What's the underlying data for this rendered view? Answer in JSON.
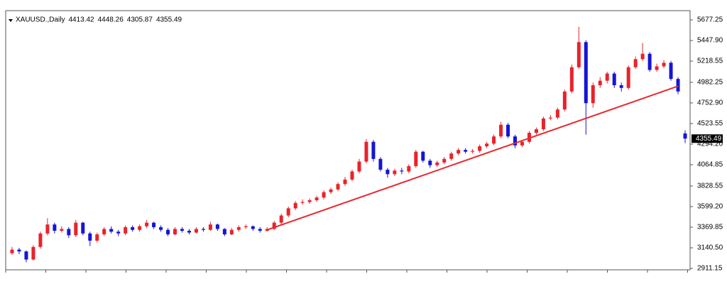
{
  "chart_data": {
    "type": "candlestick",
    "header": {
      "symbol": "XAUUSD.,Daily",
      "open": 4413.42,
      "high": 4448.26,
      "low": 4305.87,
      "close": 4355.49
    },
    "up_color": "#e8232a",
    "down_color": "#1515d6",
    "last_price": 4355.49,
    "ylim": [
      2911.15,
      5677.25
    ],
    "yticks": [
      5677.25,
      {
        "value": 5447.9,
        "label": "5447.90"
      },
      5218.55,
      4982.25,
      {
        "value": 4752.9,
        "label": "4752.90"
      },
      4523.55,
      {
        "value": 4294.2,
        "label": "4294.20"
      },
      4064.85,
      3828.55,
      {
        "value": 3599.2,
        "label": "3599.20"
      },
      3369.85,
      {
        "value": 3140.5,
        "label": "3140.50"
      },
      2911.15
    ],
    "trendline": {
      "color": "#e8292e",
      "from": [
        36,
        3340
      ],
      "to": [
        94,
        4940
      ]
    },
    "open": [
      3080,
      3120,
      3100,
      3010,
      3150,
      3300,
      3400,
      3330,
      3350,
      3280,
      3420,
      3300,
      3220,
      3290,
      3350,
      3320,
      3300,
      3370,
      3340,
      3380,
      3420,
      3370,
      3340,
      3290,
      3350,
      3330,
      3310,
      3350,
      3340,
      3400,
      3350,
      3290,
      3340,
      3370,
      3380,
      3350,
      3330,
      3350,
      3420,
      3500,
      3580,
      3640,
      3650,
      3670,
      3700,
      3760,
      3790,
      3850,
      3900,
      3990,
      4100,
      4320,
      4130,
      4010,
      3960,
      4000,
      3990,
      4050,
      4210,
      4110,
      4060,
      4090,
      4130,
      4190,
      4230,
      4210,
      4220,
      4270,
      4300,
      4380,
      4510,
      4380,
      4280,
      4320,
      4420,
      4460,
      4580,
      4590,
      4680,
      4880,
      5150,
      5430,
      4750,
      4950,
      5000,
      5080,
      4950,
      4920,
      5150,
      5240,
      5300,
      5120,
      5160,
      5200,
      5020,
      4413.42
    ],
    "high": [
      3150,
      3140,
      3110,
      3170,
      3320,
      3470,
      3420,
      3380,
      3370,
      3450,
      3430,
      3320,
      3310,
      3370,
      3380,
      3340,
      3390,
      3390,
      3400,
      3450,
      3430,
      3390,
      3360,
      3370,
      3370,
      3350,
      3370,
      3370,
      3430,
      3410,
      3360,
      3360,
      3390,
      3400,
      3390,
      3370,
      3370,
      3440,
      3520,
      3600,
      3660,
      3680,
      3690,
      3720,
      3780,
      3810,
      3870,
      3930,
      4010,
      4130,
      4350,
      4340,
      4150,
      4030,
      4020,
      4030,
      4070,
      4230,
      4220,
      4130,
      4110,
      4150,
      4210,
      4250,
      4250,
      4240,
      4290,
      4320,
      4400,
      4540,
      4530,
      4400,
      4340,
      4440,
      4480,
      4600,
      4620,
      4700,
      4900,
      5180,
      5600,
      5450,
      4980,
      5040,
      5100,
      5100,
      4980,
      5170,
      5270,
      5420,
      5320,
      5190,
      5230,
      5220,
      5040,
      4448.26
    ],
    "low": [
      3060,
      3070,
      2980,
      3000,
      3130,
      3280,
      3300,
      3310,
      3250,
      3260,
      3280,
      3160,
      3200,
      3270,
      3300,
      3270,
      3280,
      3320,
      3320,
      3360,
      3350,
      3320,
      3270,
      3280,
      3310,
      3290,
      3300,
      3320,
      3330,
      3330,
      3270,
      3280,
      3320,
      3350,
      3330,
      3310,
      3320,
      3340,
      3400,
      3480,
      3560,
      3620,
      3630,
      3650,
      3680,
      3740,
      3770,
      3830,
      3880,
      3970,
      4080,
      4100,
      3990,
      3920,
      3940,
      3960,
      3970,
      4030,
      4090,
      4030,
      4040,
      4070,
      4110,
      4170,
      4190,
      4190,
      4200,
      4250,
      4280,
      4360,
      4360,
      4250,
      4260,
      4300,
      4400,
      4440,
      4560,
      4570,
      4660,
      4860,
      5130,
      4400,
      4700,
      4920,
      4970,
      4920,
      4880,
      4900,
      5130,
      5220,
      5100,
      5100,
      5140,
      5000,
      4850,
      4305.87
    ],
    "close": [
      3120,
      3100,
      3010,
      3150,
      3300,
      3400,
      3330,
      3350,
      3280,
      3420,
      3300,
      3220,
      3290,
      3350,
      3320,
      3300,
      3370,
      3340,
      3380,
      3420,
      3370,
      3340,
      3290,
      3350,
      3330,
      3310,
      3350,
      3340,
      3400,
      3350,
      3290,
      3340,
      3370,
      3380,
      3350,
      3330,
      3350,
      3420,
      3500,
      3580,
      3640,
      3650,
      3670,
      3700,
      3760,
      3790,
      3850,
      3900,
      3990,
      4100,
      4320,
      4130,
      4010,
      3960,
      4000,
      3990,
      4050,
      4210,
      4110,
      4060,
      4090,
      4130,
      4190,
      4230,
      4210,
      4220,
      4270,
      4300,
      4380,
      4510,
      4380,
      4280,
      4320,
      4420,
      4460,
      4580,
      4590,
      4680,
      4880,
      5150,
      5430,
      4750,
      4950,
      5000,
      5080,
      4950,
      4920,
      5150,
      5240,
      5300,
      5120,
      5160,
      5200,
      5020,
      4880,
      4355.49
    ]
  }
}
